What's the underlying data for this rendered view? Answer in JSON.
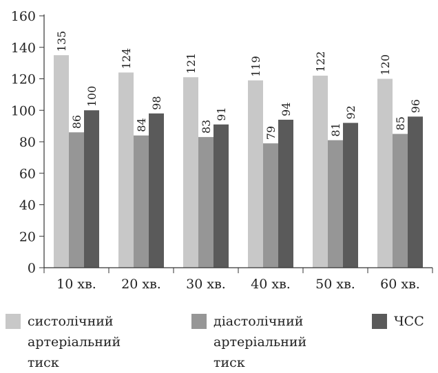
{
  "chart_data": {
    "type": "bar",
    "categories": [
      "10 хв.",
      "20 хв.",
      "30 хв.",
      "40 хв.",
      "50 хв.",
      "60 хв."
    ],
    "series": [
      {
        "name": "систолічний\nартеріальний тиск",
        "values": [
          135,
          124,
          121,
          119,
          122,
          120
        ],
        "color": "#c8c8c8"
      },
      {
        "name": "діастолічний\nартеріальний тиск",
        "values": [
          86,
          84,
          83,
          79,
          81,
          85
        ],
        "color": "#969696"
      },
      {
        "name": "ЧСС",
        "values": [
          100,
          98,
          91,
          94,
          92,
          96
        ],
        "color": "#5a5a5a"
      }
    ],
    "ylim": [
      0,
      160
    ],
    "yticks": [
      0,
      20,
      40,
      60,
      80,
      100,
      120,
      140,
      160
    ],
    "grid": false,
    "legend_position": "bottom",
    "data_labels": true
  }
}
